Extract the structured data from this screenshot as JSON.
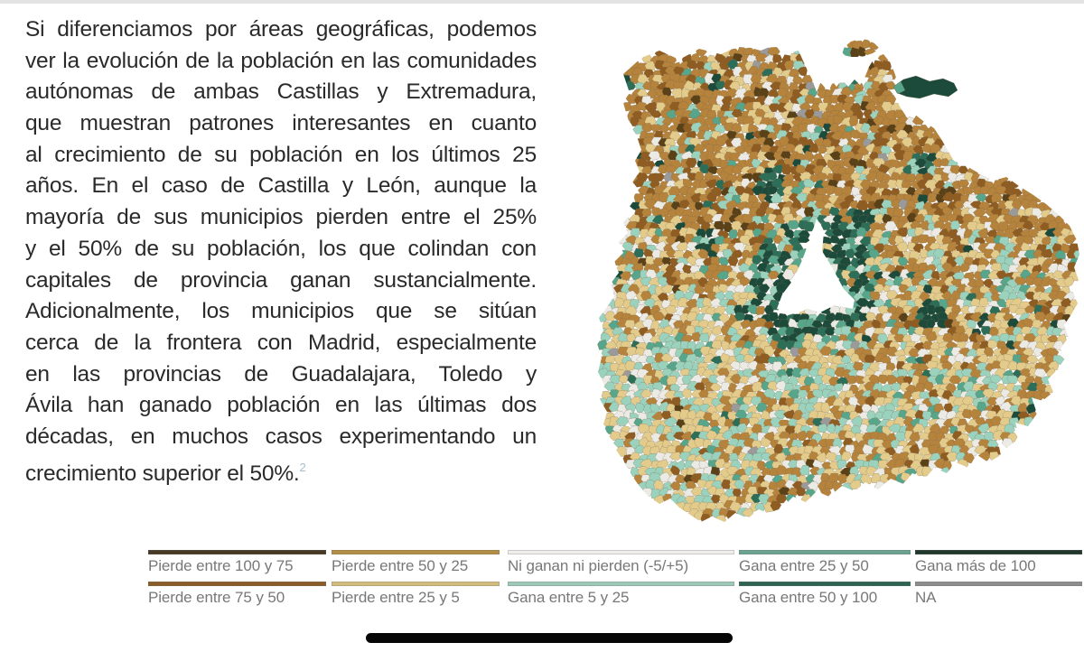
{
  "article": {
    "text_color": "#2a2a2a",
    "footnote_color": "#a5becd",
    "footnote_marker": "2",
    "lines": [
      "Si diferenciamos por áreas geográficas, podemos",
      "ver la evolución de la población en las comunidades",
      "autónomas de ambas Castillas y Extremadura,",
      "que muestran patrones interesantes en cuanto",
      "al crecimiento de su población en los últimos 25",
      "años. En el caso de Castilla y León, aunque la",
      "mayoría de sus municipios pierden entre el 25%",
      "y el 50% de su población, los que colindan con",
      "capitales de provincia ganan sustancialmente.",
      "Adicionalmente, los municipios que se sitúan",
      "cerca de la frontera con Madrid, especialmente",
      "en las provincias de Guadalajara, Toledo y",
      "Ávila han ganado población en las últimas dos",
      "décadas, en muchos casos experimentando un",
      "crecimiento superior el 50%."
    ]
  },
  "legend": {
    "text_color": "#787878",
    "rows": [
      [
        {
          "label": "Pierde entre 100 y 75",
          "color": "#463823"
        },
        {
          "label": "Pierde entre 50 y 25",
          "color": "#b18e44"
        },
        {
          "label": "Ni ganan ni pierden (-5/+5)",
          "color": "#efeeea"
        },
        {
          "label": "Gana entre 25 y 50",
          "color": "#6ba390"
        },
        {
          "label": "Gana más de 100",
          "color": "#20382c"
        }
      ],
      [
        {
          "label": "Pierde entre 75 y 50",
          "color": "#8a5d28"
        },
        {
          "label": "Pierde entre 25 y 5",
          "color": "#d2bc7c"
        },
        {
          "label": "Gana entre 5 y 25",
          "color": "#9dcab8"
        },
        {
          "label": "Gana entre 50 y 100",
          "color": "#2e6452"
        },
        {
          "label": "NA",
          "color": "#8d8d8d"
        }
      ]
    ]
  },
  "map": {
    "cell_stroke": "#7a684a",
    "palette": {
      "p100_75": "#5a4118",
      "p75_50": "#8f5c22",
      "p50_25": "#b5833c",
      "p25_5": "#e3cb8c",
      "flat": "#ebeae5",
      "g5_25": "#9ad2be",
      "g25_50": "#57a58a",
      "g50_100": "#2d6e59",
      "g100": "#1c4b3c",
      "na": "#9a9a9a"
    }
  },
  "chart_data": {
    "type": "choropleth",
    "title": "",
    "legend_position": "bottom",
    "categories": [
      "Pierde entre 100 y 75",
      "Pierde entre 50 y 25",
      "Ni ganan ni pierden (-5/+5)",
      "Gana entre 25 y 50",
      "Gana más de 100",
      "Pierde entre 75 y 50",
      "Pierde entre 25 y 5",
      "Gana entre 5 y 25",
      "Gana entre 50 y 100",
      "NA"
    ],
    "colors": [
      "#463823",
      "#b18e44",
      "#efeeea",
      "#6ba390",
      "#20382c",
      "#8a5d28",
      "#d2bc7c",
      "#9dcab8",
      "#2e6452",
      "#8d8d8d"
    ]
  }
}
